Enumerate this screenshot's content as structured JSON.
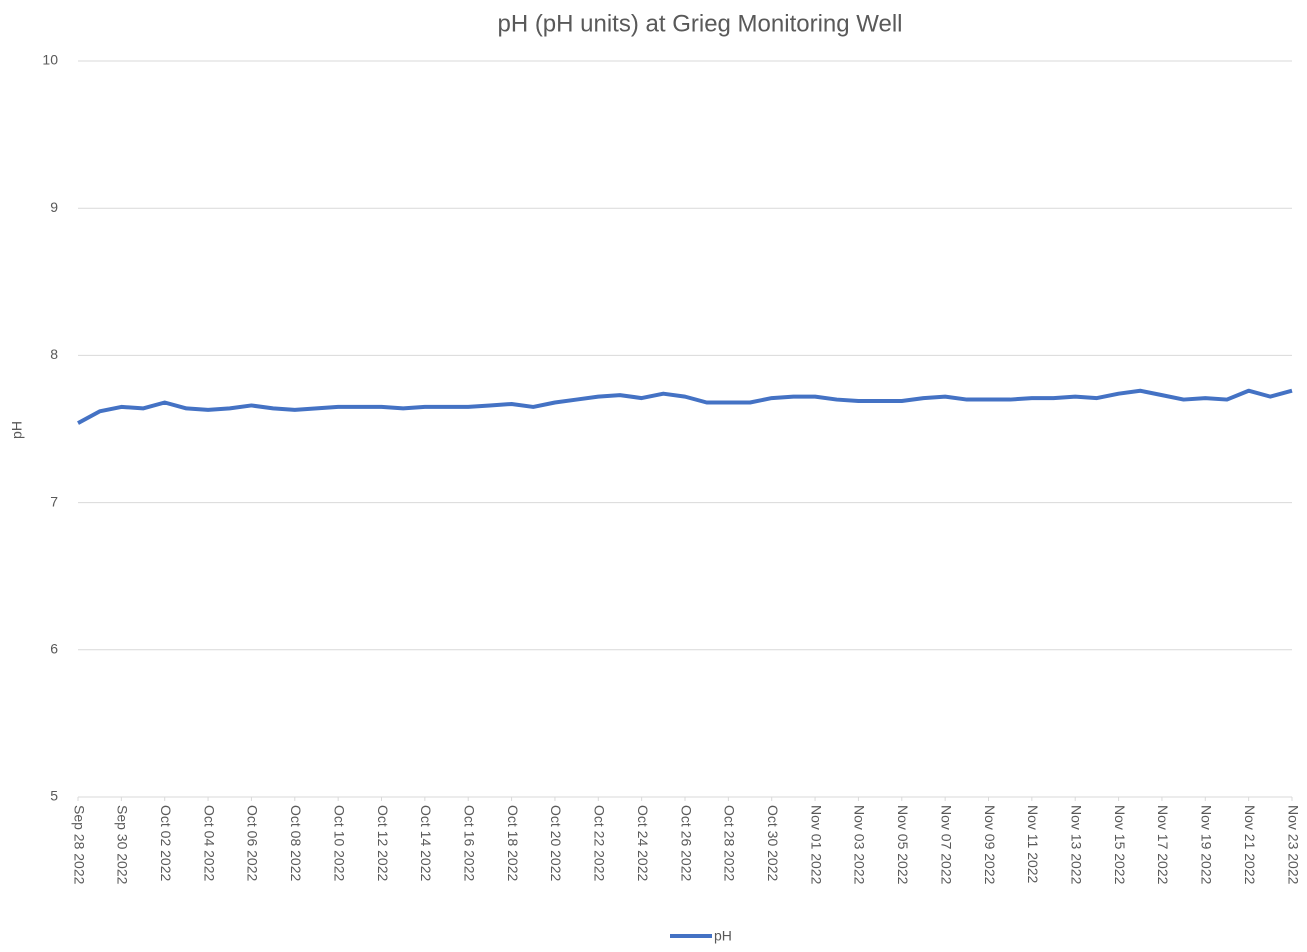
{
  "chart_data": {
    "type": "line",
    "title": "pH (pH units) at Grieg Monitoring Well",
    "y_label": "pH",
    "x": [
      "2022-09-28",
      "2022-09-29",
      "2022-09-30",
      "2022-10-01",
      "2022-10-02",
      "2022-10-03",
      "2022-10-04",
      "2022-10-05",
      "2022-10-06",
      "2022-10-07",
      "2022-10-08",
      "2022-10-09",
      "2022-10-10",
      "2022-10-11",
      "2022-10-12",
      "2022-10-13",
      "2022-10-14",
      "2022-10-15",
      "2022-10-16",
      "2022-10-17",
      "2022-10-18",
      "2022-10-19",
      "2022-10-20",
      "2022-10-21",
      "2022-10-22",
      "2022-10-23",
      "2022-10-24",
      "2022-10-25",
      "2022-10-26",
      "2022-10-27",
      "2022-10-28",
      "2022-10-29",
      "2022-10-30",
      "2022-10-31",
      "2022-11-01",
      "2022-11-02",
      "2022-11-03",
      "2022-11-04",
      "2022-11-05",
      "2022-11-06",
      "2022-11-07",
      "2022-11-08",
      "2022-11-09",
      "2022-11-10",
      "2022-11-11",
      "2022-11-12",
      "2022-11-13",
      "2022-11-14",
      "2022-11-15",
      "2022-11-16",
      "2022-11-17",
      "2022-11-18",
      "2022-11-19",
      "2022-11-20",
      "2022-11-21",
      "2022-11-22",
      "2022-11-23"
    ],
    "series": [
      {
        "name": "pH",
        "color": "#4472c4",
        "values": [
          7.54,
          7.62,
          7.65,
          7.64,
          7.68,
          7.64,
          7.63,
          7.64,
          7.66,
          7.64,
          7.63,
          7.64,
          7.65,
          7.65,
          7.65,
          7.64,
          7.65,
          7.65,
          7.65,
          7.66,
          7.67,
          7.65,
          7.68,
          7.7,
          7.72,
          7.73,
          7.71,
          7.74,
          7.72,
          7.68,
          7.68,
          7.68,
          7.71,
          7.72,
          7.72,
          7.7,
          7.69,
          7.69,
          7.69,
          7.71,
          7.72,
          7.7,
          7.7,
          7.7,
          7.71,
          7.71,
          7.72,
          7.71,
          7.74,
          7.76,
          7.73,
          7.7,
          7.71,
          7.7,
          7.76,
          7.72,
          7.76
        ]
      }
    ],
    "xlim": [
      "2022-09-28",
      "2022-11-23"
    ],
    "xticks": [
      {
        "value": "2022-09-28",
        "label": "Sep 28 2022"
      },
      {
        "value": "2022-09-30",
        "label": "Sep 30 2022"
      },
      {
        "value": "2022-10-02",
        "label": "Oct 02 2022"
      },
      {
        "value": "2022-10-04",
        "label": "Oct 04 2022"
      },
      {
        "value": "2022-10-06",
        "label": "Oct 06 2022"
      },
      {
        "value": "2022-10-08",
        "label": "Oct 08 2022"
      },
      {
        "value": "2022-10-10",
        "label": "Oct 10 2022"
      },
      {
        "value": "2022-10-12",
        "label": "Oct 12 2022"
      },
      {
        "value": "2022-10-14",
        "label": "Oct 14 2022"
      },
      {
        "value": "2022-10-16",
        "label": "Oct 16 2022"
      },
      {
        "value": "2022-10-18",
        "label": "Oct 18 2022"
      },
      {
        "value": "2022-10-20",
        "label": "Oct 20 2022"
      },
      {
        "value": "2022-10-22",
        "label": "Oct 22 2022"
      },
      {
        "value": "2022-10-24",
        "label": "Oct 24 2022"
      },
      {
        "value": "2022-10-26",
        "label": "Oct 26 2022"
      },
      {
        "value": "2022-10-28",
        "label": "Oct 28 2022"
      },
      {
        "value": "2022-10-30",
        "label": "Oct 30 2022"
      },
      {
        "value": "2022-11-01",
        "label": "Nov 01 2022"
      },
      {
        "value": "2022-11-03",
        "label": "Nov 03 2022"
      },
      {
        "value": "2022-11-05",
        "label": "Nov 05 2022"
      },
      {
        "value": "2022-11-07",
        "label": "Nov 07 2022"
      },
      {
        "value": "2022-11-09",
        "label": "Nov 09 2022"
      },
      {
        "value": "2022-11-11",
        "label": "Nov 11 2022"
      },
      {
        "value": "2022-11-13",
        "label": "Nov 13 2022"
      },
      {
        "value": "2022-11-15",
        "label": "Nov 15 2022"
      },
      {
        "value": "2022-11-17",
        "label": "Nov 17 2022"
      },
      {
        "value": "2022-11-19",
        "label": "Nov 19 2022"
      },
      {
        "value": "2022-11-21",
        "label": "Nov 21 2022"
      },
      {
        "value": "2022-11-23",
        "label": "Nov 23 2022"
      }
    ],
    "ylim": [
      5,
      10
    ],
    "yticks": [
      5,
      6,
      7,
      8,
      9,
      10
    ],
    "grid": true,
    "legend": "bottom"
  }
}
